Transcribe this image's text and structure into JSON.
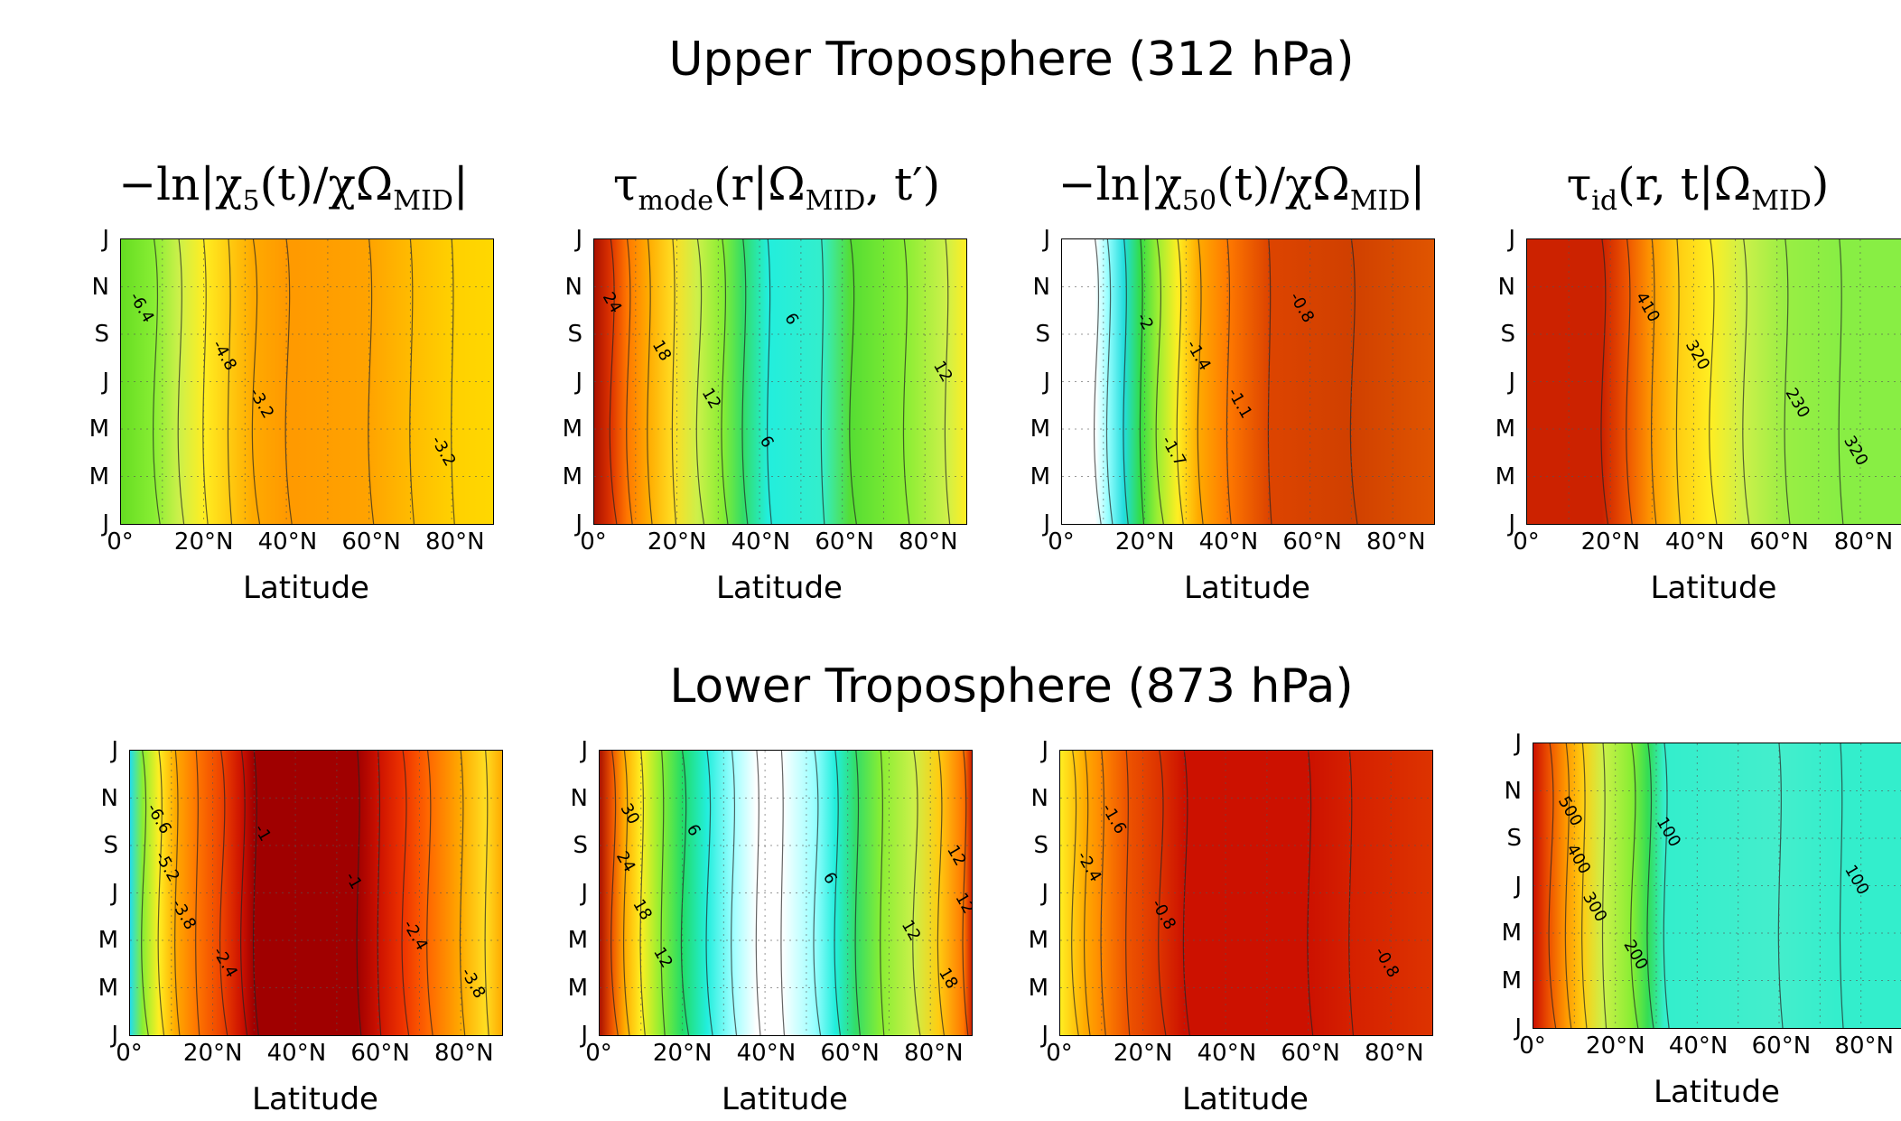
{
  "rows": [
    {
      "title": "Upper Troposphere (312 hPa)"
    },
    {
      "title": "Lower Troposphere (873 hPa)"
    }
  ],
  "axes": {
    "y_ticks": [
      "J",
      "N",
      "S",
      "J",
      "M",
      "M",
      "J"
    ],
    "x_ticks": [
      "0°",
      "20°N",
      "40°N",
      "60°N",
      "80°N"
    ],
    "x_label": "Latitude"
  },
  "chart_data": [
    {
      "type": "heatmap",
      "row": "upper",
      "title_parts": [
        "−ln|χ",
        "5",
        "(t)/χ",
        "Ω",
        "MID",
        "|"
      ],
      "x_range": [
        0,
        90
      ],
      "columns": [
        {
          "lat": 0,
          "color": "#66dd22"
        },
        {
          "lat": 8,
          "color": "#88ee33"
        },
        {
          "lat": 14,
          "color": "#ccf04a"
        },
        {
          "lat": 20,
          "color": "#ffee22"
        },
        {
          "lat": 26,
          "color": "#ffcc11"
        },
        {
          "lat": 32,
          "color": "#ffaa00"
        },
        {
          "lat": 40,
          "color": "#ff9900"
        },
        {
          "lat": 60,
          "color": "#ffa300"
        },
        {
          "lat": 70,
          "color": "#ffbb00"
        },
        {
          "lat": 80,
          "color": "#ffd000"
        },
        {
          "lat": 90,
          "color": "#ffd800"
        }
      ],
      "contour_labels": [
        "-6.4",
        "-4.8",
        "-3.2",
        "-3.2"
      ],
      "label_positions": [
        [
          2,
          180
        ],
        [
          22,
          58
        ],
        [
          31,
          50
        ],
        [
          75,
          50
        ]
      ]
    },
    {
      "type": "heatmap",
      "row": "upper",
      "title_parts": [
        "τ",
        "mode",
        "(r|Ω",
        "MID",
        ", t′)"
      ],
      "x_range": [
        0,
        90
      ],
      "columns": [
        {
          "lat": 0,
          "color": "#aa1100"
        },
        {
          "lat": 4,
          "color": "#dd3300"
        },
        {
          "lat": 8,
          "color": "#ff7700"
        },
        {
          "lat": 13,
          "color": "#ffaa00"
        },
        {
          "lat": 19,
          "color": "#ffdd22"
        },
        {
          "lat": 25,
          "color": "#ccf04a"
        },
        {
          "lat": 31,
          "color": "#88ee33"
        },
        {
          "lat": 36,
          "color": "#33dd66"
        },
        {
          "lat": 42,
          "color": "#22eedd"
        },
        {
          "lat": 55,
          "color": "#33eecc"
        },
        {
          "lat": 62,
          "color": "#55dd33"
        },
        {
          "lat": 75,
          "color": "#88ee33"
        },
        {
          "lat": 85,
          "color": "#ccf04a"
        },
        {
          "lat": 90,
          "color": "#ffee22"
        }
      ],
      "contour_labels": [
        "24",
        "18",
        "12",
        "6",
        "6",
        "12"
      ],
      "label_positions": [
        [
          2,
          50
        ],
        [
          14,
          50
        ],
        [
          26,
          50
        ],
        [
          40,
          50
        ],
        [
          46,
          50
        ],
        [
          82,
          105
        ]
      ]
    },
    {
      "type": "heatmap",
      "row": "upper",
      "title_parts": [
        "−ln|χ",
        "50",
        "(t)/χ",
        "Ω",
        "MID",
        "|"
      ],
      "x_range": [
        0,
        90
      ],
      "columns": [
        {
          "lat": 0,
          "color": "#ffffff"
        },
        {
          "lat": 8,
          "color": "#ffffff"
        },
        {
          "lat": 11,
          "color": "#99ffff"
        },
        {
          "lat": 15,
          "color": "#22dddd"
        },
        {
          "lat": 19,
          "color": "#33dd44"
        },
        {
          "lat": 23,
          "color": "#99ee33"
        },
        {
          "lat": 28,
          "color": "#ffee22"
        },
        {
          "lat": 33,
          "color": "#ffaa00"
        },
        {
          "lat": 40,
          "color": "#ff7a00"
        },
        {
          "lat": 50,
          "color": "#dd4400"
        },
        {
          "lat": 70,
          "color": "#d04000"
        },
        {
          "lat": 90,
          "color": "#e05500"
        }
      ],
      "contour_labels": [
        "-0.8",
        "-1.4",
        "-1.1",
        "-1.7",
        "-2"
      ],
      "label_positions": [
        [
          55,
          230
        ],
        [
          30,
          55
        ],
        [
          40,
          55
        ],
        [
          24,
          70
        ],
        [
          18,
          50
        ]
      ]
    },
    {
      "type": "heatmap",
      "row": "upper",
      "title_parts": [
        "τ",
        "id",
        "(r, t|Ω",
        "MID",
        ")"
      ],
      "x_range": [
        0,
        90
      ],
      "columns": [
        {
          "lat": 0,
          "color": "#cc2200"
        },
        {
          "lat": 18,
          "color": "#cc2200"
        },
        {
          "lat": 24,
          "color": "#ee5500"
        },
        {
          "lat": 30,
          "color": "#ff9900"
        },
        {
          "lat": 36,
          "color": "#ffcc11"
        },
        {
          "lat": 44,
          "color": "#ffee22"
        },
        {
          "lat": 52,
          "color": "#ccf04a"
        },
        {
          "lat": 62,
          "color": "#99ee44"
        },
        {
          "lat": 75,
          "color": "#88ee44"
        },
        {
          "lat": 90,
          "color": "#88ee44"
        }
      ],
      "contour_labels": [
        "410",
        "320",
        "230",
        "320"
      ],
      "label_positions": [
        [
          26,
          70
        ],
        [
          38,
          70
        ],
        [
          62,
          105
        ],
        [
          76,
          20
        ]
      ]
    },
    {
      "type": "heatmap",
      "row": "lower",
      "title_parts": [],
      "x_range": [
        0,
        90
      ],
      "columns": [
        {
          "lat": 0,
          "color": "#22ddee"
        },
        {
          "lat": 3,
          "color": "#88ee33"
        },
        {
          "lat": 7,
          "color": "#ffee22"
        },
        {
          "lat": 11,
          "color": "#ffaa00"
        },
        {
          "lat": 16,
          "color": "#ff7700"
        },
        {
          "lat": 22,
          "color": "#ee4400"
        },
        {
          "lat": 27,
          "color": "#cc1100"
        },
        {
          "lat": 30,
          "color": "#a00000"
        },
        {
          "lat": 55,
          "color": "#a00000"
        },
        {
          "lat": 60,
          "color": "#cc1100"
        },
        {
          "lat": 66,
          "color": "#ee3300"
        },
        {
          "lat": 72,
          "color": "#ff6600"
        },
        {
          "lat": 80,
          "color": "#ffaa00"
        },
        {
          "lat": 86,
          "color": "#ffdd22"
        },
        {
          "lat": 90,
          "color": "#ffaa00"
        }
      ],
      "contour_labels": [
        "-6.6",
        "-5.2",
        "-3.8",
        "-2.4",
        "-1",
        "-1",
        "-2.4",
        "-3.8"
      ],
      "label_positions": [
        [
          4,
          130
        ],
        [
          6,
          100
        ],
        [
          10,
          50
        ],
        [
          20,
          60
        ],
        [
          30,
          20
        ],
        [
          52,
          20
        ],
        [
          66,
          250
        ],
        [
          80,
          130
        ]
      ]
    },
    {
      "type": "heatmap",
      "row": "lower",
      "title_parts": [],
      "x_range": [
        0,
        90
      ],
      "columns": [
        {
          "lat": 0,
          "color": "#aa1100"
        },
        {
          "lat": 3,
          "color": "#ee5500"
        },
        {
          "lat": 6,
          "color": "#ffaa00"
        },
        {
          "lat": 10,
          "color": "#ffee22"
        },
        {
          "lat": 15,
          "color": "#88ee33"
        },
        {
          "lat": 20,
          "color": "#22dd66"
        },
        {
          "lat": 26,
          "color": "#22eedd"
        },
        {
          "lat": 32,
          "color": "#99ffff"
        },
        {
          "lat": 38,
          "color": "#ffffff"
        },
        {
          "lat": 44,
          "color": "#ffffff"
        },
        {
          "lat": 52,
          "color": "#99ffff"
        },
        {
          "lat": 57,
          "color": "#22eedd"
        },
        {
          "lat": 62,
          "color": "#33dd66"
        },
        {
          "lat": 68,
          "color": "#88ee33"
        },
        {
          "lat": 76,
          "color": "#ccf04a"
        },
        {
          "lat": 82,
          "color": "#ffcc11"
        },
        {
          "lat": 88,
          "color": "#ff7700"
        },
        {
          "lat": 90,
          "color": "#cc2200"
        }
      ],
      "contour_labels": [
        "30",
        "24",
        "18",
        "12",
        "6",
        "6",
        "12",
        "18",
        "12",
        "12"
      ],
      "label_positions": [
        [
          5,
          120
        ],
        [
          4,
          100
        ],
        [
          8,
          50
        ],
        [
          13,
          60
        ],
        [
          21,
          50
        ],
        [
          54,
          50
        ],
        [
          73,
          60
        ],
        [
          82,
          330
        ],
        [
          84,
          70
        ],
        [
          86,
          20
        ]
      ]
    },
    {
      "type": "heatmap",
      "row": "lower",
      "title_parts": [],
      "x_range": [
        0,
        90
      ],
      "columns": [
        {
          "lat": 0,
          "color": "#ffee22"
        },
        {
          "lat": 3,
          "color": "#ffcc11"
        },
        {
          "lat": 6,
          "color": "#ffaa00"
        },
        {
          "lat": 10,
          "color": "#ff8800"
        },
        {
          "lat": 16,
          "color": "#ee5500"
        },
        {
          "lat": 24,
          "color": "#dd3300"
        },
        {
          "lat": 30,
          "color": "#cc1100"
        },
        {
          "lat": 60,
          "color": "#cc1100"
        },
        {
          "lat": 70,
          "color": "#d52000"
        },
        {
          "lat": 90,
          "color": "#dd3300"
        }
      ],
      "contour_labels": [
        "-1.6",
        "-2.4",
        "-0.8",
        "-0.8"
      ],
      "label_positions": [
        [
          10,
          290
        ],
        [
          4,
          290
        ],
        [
          22,
          300
        ],
        [
          76,
          340
        ]
      ]
    },
    {
      "type": "heatmap",
      "row": "lower",
      "title_parts": [],
      "x_range": [
        0,
        90
      ],
      "columns": [
        {
          "lat": 0,
          "color": "#cc1100"
        },
        {
          "lat": 4,
          "color": "#ee5500"
        },
        {
          "lat": 8,
          "color": "#ff9900"
        },
        {
          "lat": 12,
          "color": "#ffcc11"
        },
        {
          "lat": 17,
          "color": "#ccf04a"
        },
        {
          "lat": 24,
          "color": "#88ee33"
        },
        {
          "lat": 28,
          "color": "#33dd55"
        },
        {
          "lat": 32,
          "color": "#33eecc"
        },
        {
          "lat": 60,
          "color": "#44eecc"
        },
        {
          "lat": 75,
          "color": "#33eecc"
        },
        {
          "lat": 90,
          "color": "#33eecc"
        }
      ],
      "contour_labels": [
        "500",
        "400",
        "300",
        "200",
        "100",
        "100"
      ],
      "label_positions": [
        [
          6,
          100
        ],
        [
          8,
          100
        ],
        [
          12,
          100
        ],
        [
          22,
          100
        ],
        [
          30,
          90
        ],
        [
          76,
          350
        ]
      ]
    }
  ]
}
